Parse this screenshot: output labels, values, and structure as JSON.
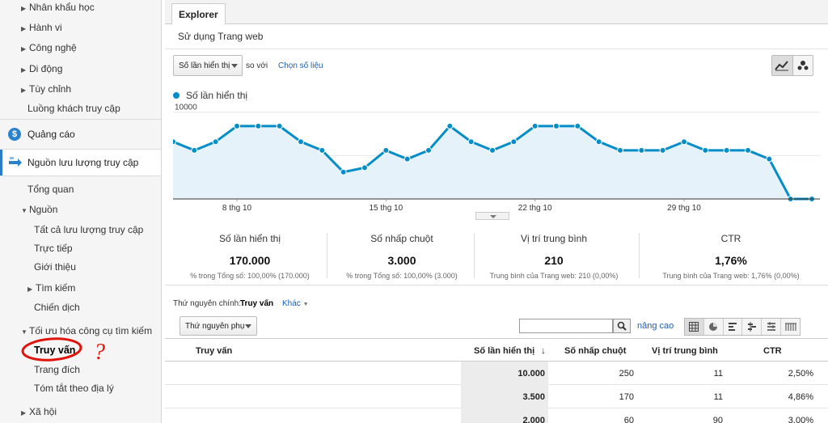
{
  "sidebar": {
    "items": [
      {
        "label": "Nhân khẩu học",
        "arrow": "right"
      },
      {
        "label": "Hành vi",
        "arrow": "right"
      },
      {
        "label": "Công nghệ",
        "arrow": "right"
      },
      {
        "label": "Di động",
        "arrow": "right"
      },
      {
        "label": "Tùy chỉnh",
        "arrow": "right"
      },
      {
        "label": "Luồng khách truy cập",
        "arrow": "none"
      }
    ],
    "ads_section": "Quảng cáo",
    "traffic_section": "Nguồn lưu lượng truy cập",
    "traffic_items": {
      "overview": "Tổng quan",
      "sources": "Nguồn",
      "all_traffic": "Tất cả lưu lượng truy cập",
      "direct": "Trực tiếp",
      "referral": "Giới thiệu",
      "search": "Tìm kiếm",
      "campaign": "Chiến dịch",
      "seo": "Tối ưu hóa công cụ tìm kiếm",
      "queries": "Truy vấn",
      "landing": "Trang đích",
      "geo": "Tóm tắt theo địa lý",
      "social": "Xã hội"
    },
    "accent_color": "#2a7ec8"
  },
  "main": {
    "tab": "Explorer",
    "subtab": "Sử dụng Trang web",
    "metric_select": "Số lần hiển thị",
    "vs_label": "so với",
    "pick_metric": "Chọn số liệu",
    "legend": "Số lần hiển thị",
    "summary": [
      {
        "label": "Số lần hiển thị",
        "value": "170.000",
        "sub_prefix": "% trong Tổng số:",
        "sub_value": "100,00% (170.000)"
      },
      {
        "label": "Số nhấp chuột",
        "value": "3.000",
        "sub_prefix": "% trong Tổng số:",
        "sub_value": "100,00% (3.000)"
      },
      {
        "label": "Vị trí trung bình",
        "value": "210",
        "sub_prefix": "Trung bình của Trang web:",
        "sub_value": "210 (0,00%)"
      },
      {
        "label": "CTR",
        "value": "1,76%",
        "sub_prefix": "Trung bình của Trang web:",
        "sub_value": "1,76% (0,00%)"
      }
    ],
    "primary_dim_label": "Thứ nguyên chính:",
    "primary_dim_value": "Truy vấn",
    "other_label": "Khác",
    "secondary_dim": "Thứ nguyên phụ",
    "search_placeholder": "",
    "advanced": "nâng cao",
    "table": {
      "headers": [
        "Truy vấn",
        "Số lần hiển thị",
        "Số nhấp chuột",
        "Vị trí trung bình",
        "CTR"
      ],
      "rows": [
        {
          "query": "",
          "impressions": "10.000",
          "clicks": "250",
          "position": "11",
          "ctr": "2,50%"
        },
        {
          "query": "",
          "impressions": "3.500",
          "clicks": "170",
          "position": "11",
          "ctr": "4,86%"
        },
        {
          "query": "",
          "impressions": "2.000",
          "clicks": "60",
          "position": "90",
          "ctr": "3,00%"
        }
      ]
    }
  },
  "chart_data": {
    "type": "area",
    "series": [
      {
        "name": "Số lần hiển thị",
        "color": "#058dc7",
        "values": [
          6600,
          5600,
          6600,
          8400,
          8400,
          8400,
          6600,
          5600,
          3100,
          3600,
          5600,
          4600,
          5600,
          8400,
          6600,
          5600,
          6600,
          8400,
          8400,
          8400,
          6600,
          5600,
          5600,
          5600,
          6600,
          5600,
          5600,
          5600,
          4600,
          0,
          0
        ]
      }
    ],
    "ylim": [
      0,
      11000
    ],
    "yticks": [
      "10000",
      "5000"
    ],
    "xticks": [
      {
        "index": 3,
        "label": "8 thg 10"
      },
      {
        "index": 10,
        "label": "15 thg 10"
      },
      {
        "index": 17,
        "label": "22 thg 10"
      },
      {
        "index": 24,
        "label": "29 thg 10"
      }
    ]
  },
  "annotation": {
    "mark": "?",
    "color": "#e0140c"
  }
}
